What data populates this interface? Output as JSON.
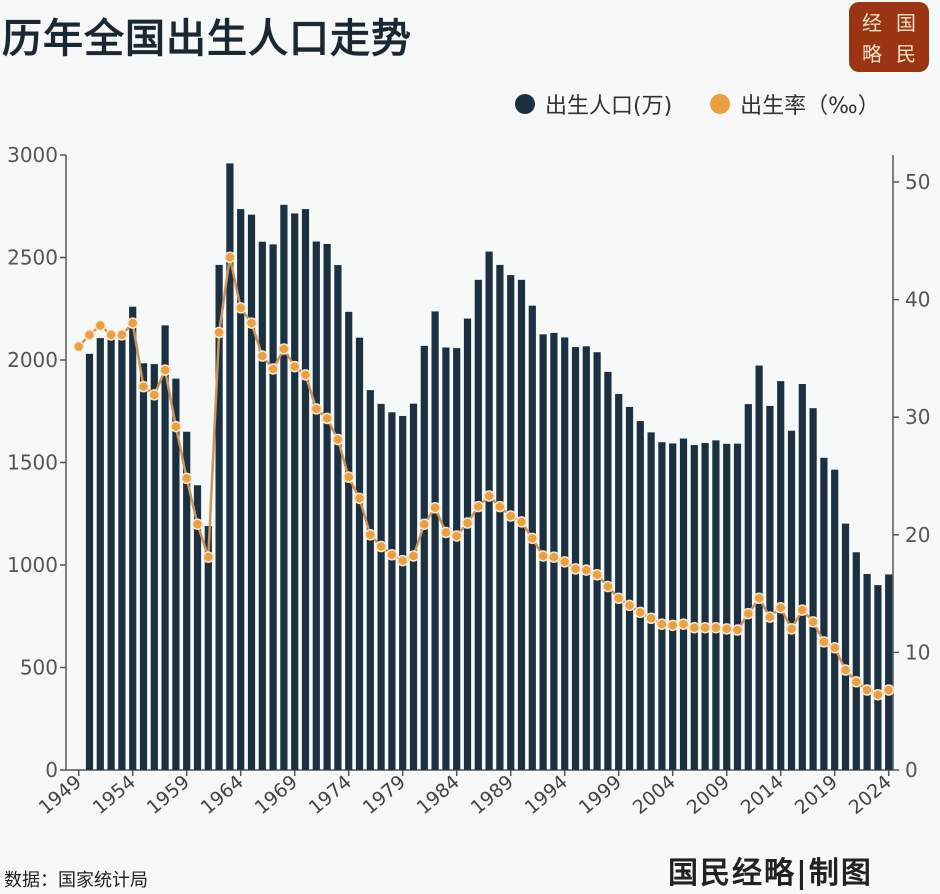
{
  "title": "历年全国出生人口走势",
  "logo": {
    "chars": [
      "经",
      "国",
      "略",
      "民"
    ],
    "text": "国民经略",
    "color": "#9a3412"
  },
  "legend": [
    {
      "label": "出生人口(万)",
      "color": "#1b3142"
    },
    {
      "label": "出生率（‰）",
      "color": "#e8a040"
    }
  ],
  "source": "数据：国家统计局",
  "credit": "国民经略|制图",
  "chart_data": {
    "type": "bar+line",
    "legend_position": "top-right",
    "grid": false,
    "x": [
      1949,
      1950,
      1951,
      1952,
      1953,
      1954,
      1955,
      1956,
      1957,
      1958,
      1959,
      1960,
      1961,
      1962,
      1963,
      1964,
      1965,
      1966,
      1967,
      1968,
      1969,
      1970,
      1971,
      1972,
      1973,
      1974,
      1975,
      1976,
      1977,
      1978,
      1979,
      1980,
      1981,
      1982,
      1983,
      1984,
      1985,
      1986,
      1987,
      1988,
      1989,
      1990,
      1991,
      1992,
      1993,
      1994,
      1995,
      1996,
      1997,
      1998,
      1999,
      2000,
      2001,
      2002,
      2003,
      2004,
      2005,
      2006,
      2007,
      2008,
      2009,
      2010,
      2011,
      2012,
      2013,
      2014,
      2015,
      2016,
      2017,
      2018,
      2019,
      2020,
      2021,
      2022,
      2023,
      2024
    ],
    "x_tick_labels": [
      "1949",
      "1954",
      "1959",
      "1964",
      "1969",
      "1974",
      "1979",
      "1984",
      "1989",
      "1994",
      "1999",
      "2004",
      "2009",
      "2014",
      "2019",
      "2024"
    ],
    "y_left": {
      "range": [
        0,
        3000
      ],
      "ticks": [
        "0",
        "500",
        "1000",
        "1500",
        "2000",
        "2500",
        "3000"
      ]
    },
    "y_right": {
      "range": [
        0,
        52
      ],
      "ticks": [
        "0",
        "10",
        "20",
        "30",
        "40",
        "50"
      ]
    },
    "series": [
      {
        "name": "出生人口(万)",
        "type": "bar",
        "axis": "left",
        "color": "#1b3142",
        "values": [
          null,
          2030,
          2107,
          2100,
          2100,
          2260,
          1984,
          1980,
          2169,
          1909,
          1650,
          1389,
          1190,
          2464,
          2959,
          2736,
          2709,
          2577,
          2564,
          2757,
          2715,
          2736,
          2578,
          2566,
          2463,
          2235,
          2109,
          1853,
          1786,
          1745,
          1727,
          1787,
          2069,
          2237,
          2061,
          2058,
          2202,
          2391,
          2529,
          2464,
          2414,
          2391,
          2265,
          2125,
          2132,
          2110,
          2063,
          2067,
          2038,
          1942,
          1834,
          1771,
          1702,
          1647,
          1599,
          1593,
          1617,
          1585,
          1595,
          1608,
          1591,
          1592,
          1785,
          1973,
          1776,
          1897,
          1655,
          1883,
          1765,
          1523,
          1465,
          1202,
          1062,
          956,
          902,
          954
        ]
      },
      {
        "name": "出生率（‰）",
        "type": "line",
        "axis": "right",
        "color": "#e8a040",
        "values": [
          36.0,
          37.0,
          37.8,
          37.0,
          37.0,
          38.0,
          32.6,
          31.9,
          34.0,
          29.2,
          24.8,
          20.9,
          18.1,
          37.2,
          43.6,
          39.3,
          38.0,
          35.2,
          34.1,
          35.8,
          34.3,
          33.6,
          30.7,
          29.9,
          28.1,
          24.9,
          23.1,
          20.0,
          19.0,
          18.3,
          17.8,
          18.2,
          20.9,
          22.3,
          20.2,
          19.9,
          21.0,
          22.4,
          23.3,
          22.4,
          21.6,
          21.1,
          19.7,
          18.2,
          18.1,
          17.7,
          17.1,
          17.0,
          16.6,
          15.6,
          14.6,
          14.0,
          13.4,
          12.9,
          12.4,
          12.3,
          12.4,
          12.1,
          12.1,
          12.1,
          12.0,
          11.9,
          13.3,
          14.6,
          13.0,
          13.8,
          12.0,
          13.6,
          12.6,
          10.9,
          10.4,
          8.5,
          7.5,
          6.8,
          6.4,
          6.8
        ]
      }
    ]
  }
}
